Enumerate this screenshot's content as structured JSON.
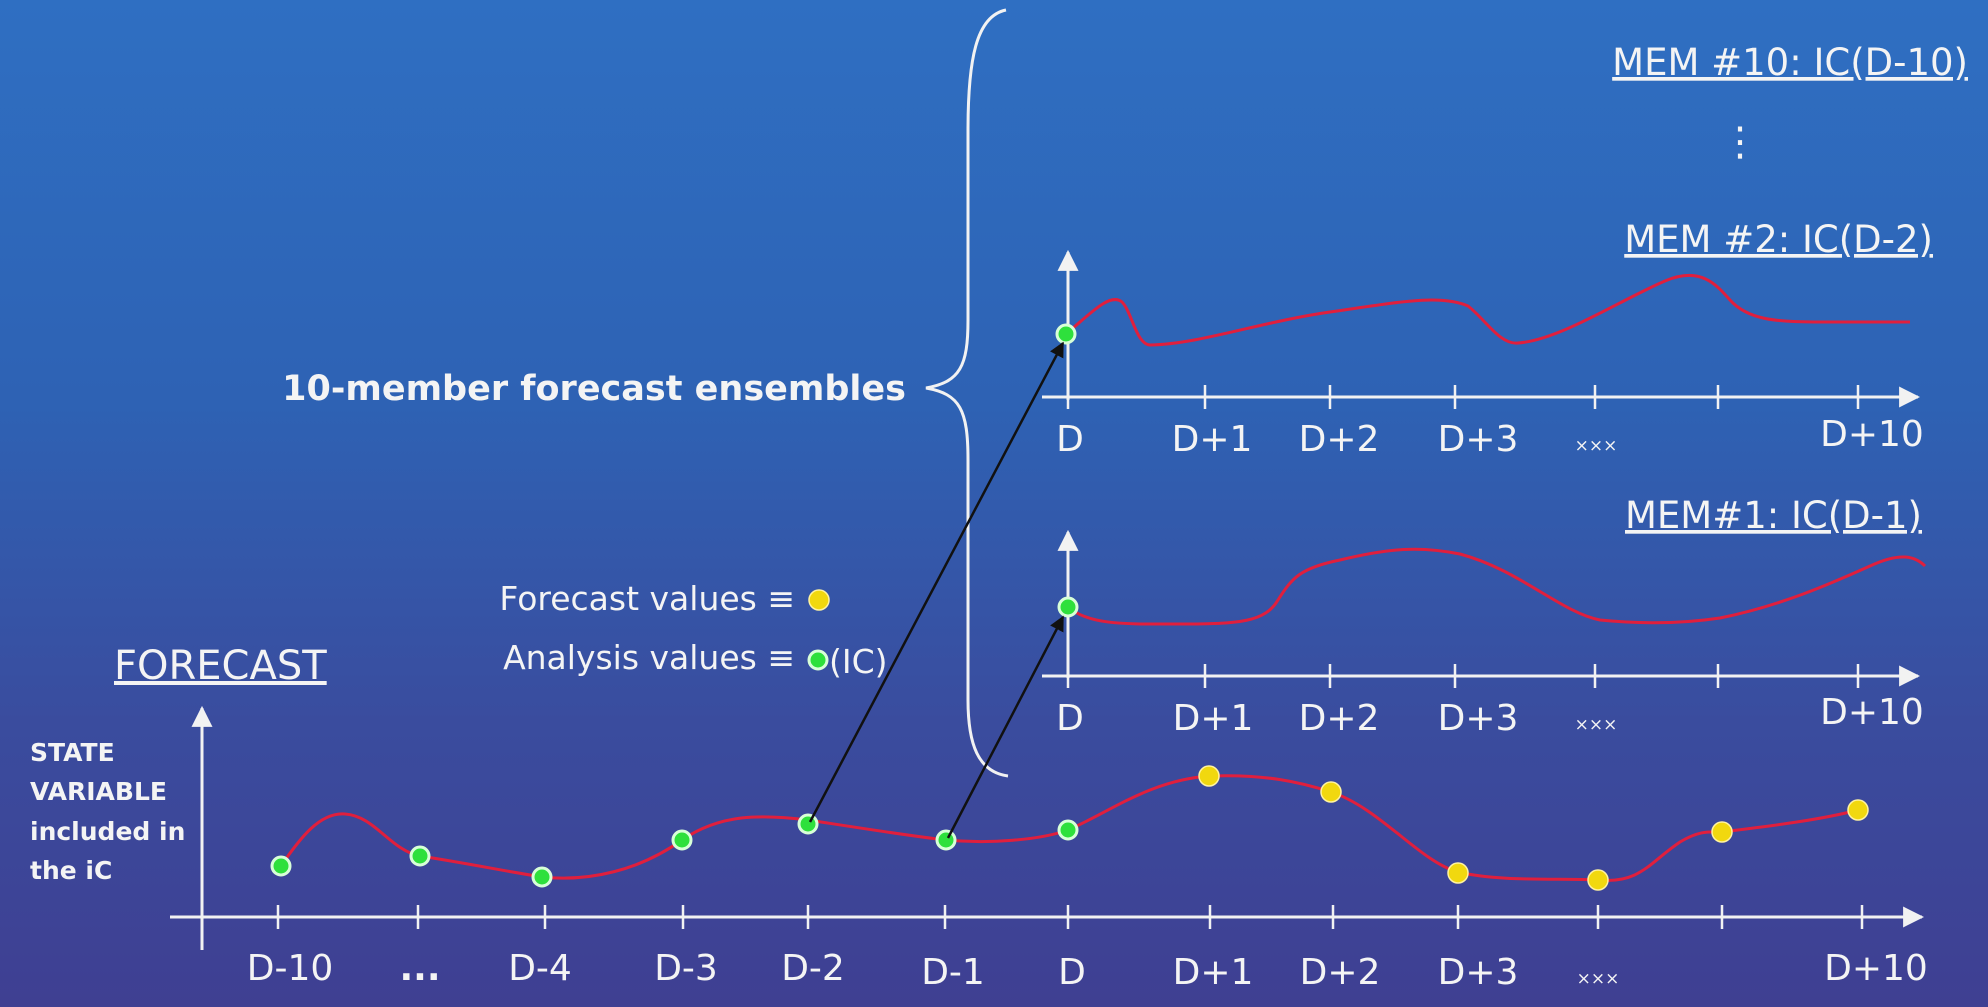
{
  "bottom_panel": {
    "title": "FORECAST",
    "ylabel_lines": [
      "STATE",
      "VARIABLE",
      "included in",
      "the iC"
    ],
    "ticks": [
      "D-10",
      "...",
      "D-4",
      "D-3",
      "D-2",
      "D-1",
      "D",
      "D+1",
      "D+2",
      "D+3",
      "×××",
      "D+10"
    ]
  },
  "legend": {
    "forecast": "Forecast values ≡",
    "analysis": "Analysis values ≡",
    "analysis_suffix": "(IC)"
  },
  "ensemble": {
    "label": "10-member forecast ensembles",
    "mem10_title": "MEM #10: IC(D-10)",
    "vdots": "⋮",
    "mem2": {
      "title": "MEM #2: IC(D-2)",
      "ticks": [
        "D",
        "D+1",
        "D+2",
        "D+3",
        "×××",
        "D+10"
      ]
    },
    "mem1": {
      "title": "MEM#1: IC(D-1)",
      "ticks": [
        "D",
        "D+1",
        "D+2",
        "D+3",
        "×××",
        "D+10"
      ]
    }
  },
  "colors": {
    "analysis_point": "#2ee03c",
    "forecast_point": "#f1d80f",
    "curve": "#e01f3d",
    "arrow": "#111111"
  }
}
